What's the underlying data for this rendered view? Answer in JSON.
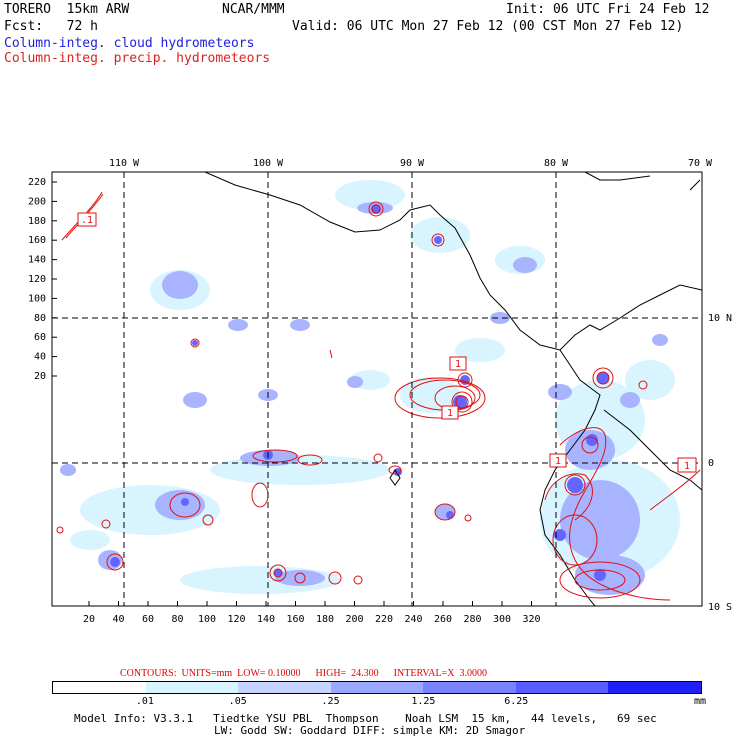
{
  "header": {
    "model": "TORERO  15km ARW",
    "org": "NCAR/MMM",
    "init": "Init: 06 UTC Fri 24 Feb 12",
    "fcst": "Fcst:   72 h",
    "valid": "Valid: 06 UTC Mon 27 Feb 12 (00 CST Mon 27 Feb 12)",
    "field_blue": "Column-integ. cloud hydrometeors",
    "field_red": "Column-integ. precip. hydrometeors"
  },
  "map": {
    "top_axis": [
      "110 W",
      "100 W",
      "90 W",
      "80 W",
      "70 W"
    ],
    "right_axis": [
      "10 N",
      "0",
      "10 S"
    ],
    "left_axis": [
      "220",
      "200",
      "180",
      "160",
      "140",
      "120",
      "100",
      "80",
      "60",
      "40",
      "20"
    ],
    "bottom_axis": [
      "20",
      "40",
      "60",
      "80",
      "100",
      "120",
      "140",
      "160",
      "180",
      "200",
      "220",
      "240",
      "260",
      "280",
      "300",
      "320"
    ],
    "contour_labels": [
      ".1",
      "1",
      "1",
      "1",
      "1"
    ],
    "colors": {
      "light": "#d8f4ff",
      "mid1": "#b4c4ff",
      "mid2": "#8c96ff",
      "dark": "#6060ff",
      "deep": "#2020ff",
      "contour": "#e01010"
    }
  },
  "legend": {
    "contour_text": "CONTOURS:  UNITS=mm  LOW= 0.10000      HIGH=  24.300      INTERVAL=X  3.0000",
    "bins": [
      ".01",
      ".05",
      ".25",
      "1.25",
      "6.25"
    ],
    "units": "mm",
    "colors": [
      "#ffffff",
      "#d8f4ff",
      "#c4d4ff",
      "#9ca8ff",
      "#7a82ff",
      "#5a5cff",
      "#2020ff"
    ]
  },
  "footer": {
    "line1": "Model Info: V3.3.1   Tiedtke YSU PBL  Thompson    Noah LSM  15 km,   44 levels,   69 sec",
    "line2": "LW: Godd SW: Goddard DIFF: simple KM: 2D Smagor"
  }
}
